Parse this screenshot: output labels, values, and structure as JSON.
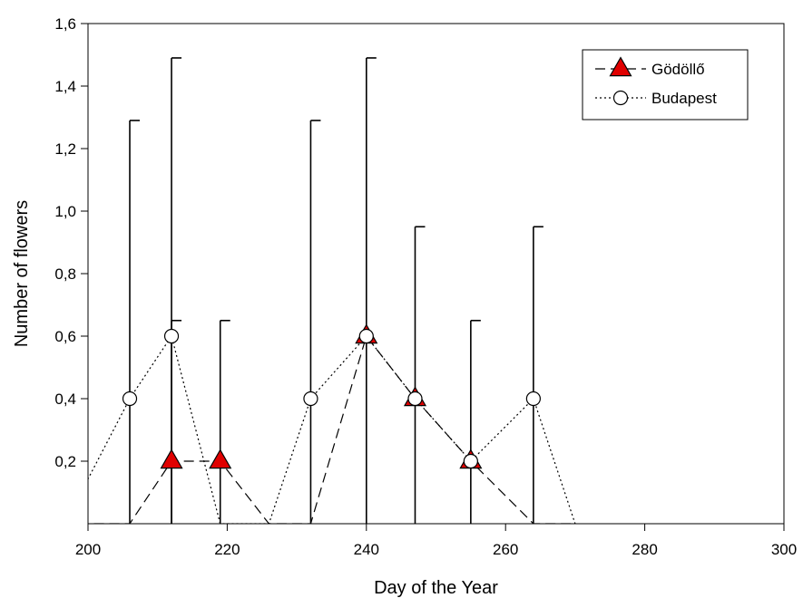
{
  "chart_data": {
    "type": "line",
    "title": "",
    "xlabel": "Day of the Year",
    "ylabel": "Number of flowers",
    "xlim": [
      200,
      300
    ],
    "ylim": [
      0,
      1.6
    ],
    "x_ticks": [
      200,
      220,
      240,
      260,
      280,
      300
    ],
    "x_tick_labels": [
      "200",
      "220",
      "240",
      "260",
      "280",
      "300"
    ],
    "y_ticks": [
      0.2,
      0.4,
      0.6,
      0.8,
      1.0,
      1.2,
      1.4,
      1.6
    ],
    "y_tick_labels": [
      "0,2",
      "0,4",
      "0,6",
      "0,8",
      "1,0",
      "1,2",
      "1,4",
      "1,6"
    ],
    "grid": false,
    "legend_position": "top-right",
    "series": [
      {
        "name": "Gödöllő",
        "marker": "triangle",
        "line_style": "dashed",
        "marker_color": "#e00000",
        "points": [
          {
            "x": 192,
            "y": 0
          },
          {
            "x": 199,
            "y": 0
          },
          {
            "x": 206,
            "y": 0
          },
          {
            "x": 212,
            "y": 0.2
          },
          {
            "x": 219,
            "y": 0.2
          },
          {
            "x": 226,
            "y": 0
          },
          {
            "x": 232,
            "y": 0
          },
          {
            "x": 240,
            "y": 0.6,
            "err": 0.89
          },
          {
            "x": 247,
            "y": 0.4,
            "err": 0.55
          },
          {
            "x": 255,
            "y": 0.2,
            "err": 0.45
          },
          {
            "x": 264,
            "y": 0
          },
          {
            "x": 270,
            "y": 0
          }
        ]
      },
      {
        "name": "Budapest",
        "marker": "circle",
        "line_style": "dotted",
        "marker_color": "#ffffff",
        "points": [
          {
            "x": 192,
            "y": 0
          },
          {
            "x": 199,
            "y": 0.1
          },
          {
            "x": 206,
            "y": 0.4,
            "err": 0.89
          },
          {
            "x": 212,
            "y": 0.6,
            "err": 0.89
          },
          {
            "x": 219,
            "y": 0
          },
          {
            "x": 226,
            "y": 0
          },
          {
            "x": 232,
            "y": 0.4,
            "err": 0.89
          },
          {
            "x": 240,
            "y": 0.6,
            "err": 0.89
          },
          {
            "x": 247,
            "y": 0.4,
            "err": 0.55
          },
          {
            "x": 255,
            "y": 0.2,
            "err": 0.45
          },
          {
            "x": 264,
            "y": 0.4,
            "err": 0.55
          },
          {
            "x": 270,
            "y": 0
          }
        ]
      }
    ],
    "error_bars": [
      {
        "x": 206,
        "upper": 1.29
      },
      {
        "x": 212,
        "upper": 1.49
      },
      {
        "x": 212,
        "upper": 0.65
      },
      {
        "x": 219,
        "upper": 0.65
      },
      {
        "x": 232,
        "upper": 1.29
      },
      {
        "x": 240,
        "upper": 1.49
      },
      {
        "x": 247,
        "upper": 0.95
      },
      {
        "x": 255,
        "upper": 0.65
      },
      {
        "x": 264,
        "upper": 0.95
      }
    ]
  }
}
